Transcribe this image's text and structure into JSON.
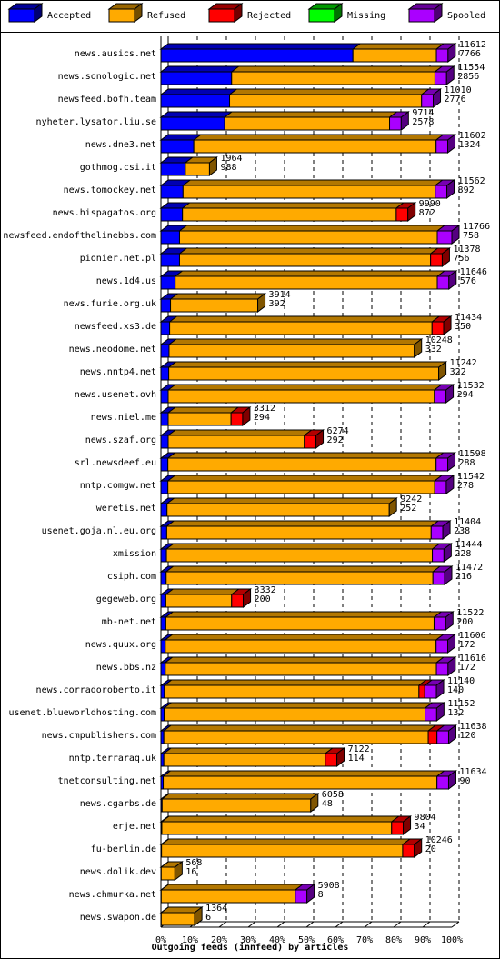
{
  "chart_data": {
    "type": "stacked-bar-3d",
    "x_label": "Outgoing feeds (innfeed) by articles",
    "categories": [
      "news.ausics.net",
      "news.sonologic.net",
      "newsfeed.bofh.team",
      "nyheter.lysator.liu.se",
      "news.dne3.net",
      "gothmog.csi.it",
      "news.tomockey.net",
      "news.hispagatos.org",
      "newsfeed.endofthelinebbs.com",
      "pionier.net.pl",
      "news.1d4.us",
      "news.furie.org.uk",
      "newsfeed.xs3.de",
      "news.neodome.net",
      "news.nntp4.net",
      "news.usenet.ovh",
      "news.niel.me",
      "news.szaf.org",
      "srl.newsdeef.eu",
      "nntp.comgw.net",
      "weretis.net",
      "usenet.goja.nl.eu.org",
      "xmission",
      "csiph.com",
      "gegeweb.org",
      "mb-net.net",
      "news.quux.org",
      "news.bbs.nz",
      "news.corradoroberto.it",
      "usenet.blueworldhosting.com",
      "news.cmpublishers.com",
      "nntp.terraraq.uk",
      "tnetconsulting.net",
      "news.cgarbs.de",
      "erje.net",
      "fu-berlin.de",
      "news.dolik.dev",
      "news.chmurka.net",
      "news.swapon.de"
    ],
    "offered": [
      11612,
      11554,
      11010,
      9714,
      11602,
      1964,
      11562,
      9990,
      11766,
      11378,
      11646,
      3914,
      11434,
      10248,
      11242,
      11532,
      3312,
      6274,
      11598,
      11542,
      9242,
      11404,
      11444,
      11472,
      3332,
      11522,
      11606,
      11616,
      11140,
      11152,
      11638,
      7122,
      11634,
      6058,
      9804,
      10246,
      568,
      5908,
      1364
    ],
    "accepted": [
      7766,
      2856,
      2776,
      2578,
      1324,
      988,
      892,
      872,
      758,
      756,
      576,
      392,
      350,
      332,
      322,
      294,
      294,
      292,
      288,
      278,
      252,
      238,
      228,
      216,
      200,
      200,
      172,
      172,
      140,
      132,
      120,
      114,
      90,
      48,
      34,
      20,
      16,
      8,
      6
    ],
    "series": [
      {
        "name": "Accepted",
        "color": "#0000ff",
        "values": [
          66.0,
          24.3,
          23.6,
          21.9,
          11.3,
          8.4,
          7.6,
          7.4,
          6.4,
          6.4,
          4.9,
          3.3,
          3.0,
          2.8,
          2.7,
          2.5,
          2.5,
          2.5,
          2.4,
          2.4,
          2.1,
          2.0,
          1.9,
          1.8,
          1.7,
          1.7,
          1.5,
          1.5,
          1.2,
          1.1,
          1.0,
          1.0,
          0.8,
          0.4,
          0.3,
          0.2,
          0.1,
          0.1,
          0.1
        ]
      },
      {
        "name": "Refused",
        "color": "#ffaa00",
        "values": [
          28.7,
          69.9,
          66.0,
          56.7,
          83.3,
          8.3,
          86.7,
          73.5,
          88.6,
          86.3,
          90.1,
          30.0,
          90.2,
          84.3,
          92.8,
          91.5,
          21.6,
          46.8,
          92.2,
          91.7,
          76.4,
          90.9,
          91.4,
          91.7,
          22.6,
          92.2,
          93.1,
          93.2,
          87.5,
          89.7,
          90.9,
          55.5,
          94.1,
          51.1,
          79.0,
          82.9,
          4.7,
          46.1,
          11.5
        ]
      },
      {
        "name": "Rejected",
        "color": "#ff0000",
        "values": [
          0,
          0,
          0,
          0,
          0,
          0,
          0,
          4,
          0,
          4,
          0,
          0,
          4,
          0,
          0,
          0,
          4,
          4,
          0,
          0,
          0,
          0,
          0,
          0,
          4,
          0,
          0,
          0,
          2,
          0,
          3,
          4,
          0,
          0,
          4,
          4,
          0,
          0,
          0
        ]
      },
      {
        "name": "Missing",
        "color": "#00ff00",
        "values": [
          0,
          0,
          0,
          0,
          0,
          0,
          0,
          0,
          0,
          0,
          0,
          0,
          0,
          0,
          0,
          0,
          0,
          0,
          0,
          0,
          0,
          0,
          0,
          0,
          0,
          0,
          0,
          0,
          0,
          0,
          0,
          0,
          0,
          0,
          0,
          0,
          0,
          0,
          0
        ]
      },
      {
        "name": "Spooled",
        "color": "#aa00ff",
        "values": [
          4,
          4,
          4,
          4,
          4,
          0,
          4,
          0,
          5,
          0,
          4,
          0,
          0,
          0,
          0,
          4,
          0,
          0,
          4,
          4,
          0,
          4,
          4,
          4,
          0,
          4,
          4,
          4,
          4,
          4,
          4,
          0,
          4,
          0,
          0,
          0,
          0,
          4,
          0
        ]
      }
    ],
    "xlim": [
      0,
      100
    ],
    "xticks": [
      {
        "value": 0,
        "label": "0%"
      },
      {
        "value": 10,
        "label": "10%"
      },
      {
        "value": 20,
        "label": "20%"
      },
      {
        "value": 30,
        "label": "30%"
      },
      {
        "value": 40,
        "label": "40%"
      },
      {
        "value": 50,
        "label": "50%"
      },
      {
        "value": 60,
        "label": "60%"
      },
      {
        "value": 70,
        "label": "70%"
      },
      {
        "value": 80,
        "label": "80%"
      },
      {
        "value": 90,
        "label": "90%"
      },
      {
        "value": 100,
        "label": "100%"
      }
    ],
    "grid": true
  }
}
